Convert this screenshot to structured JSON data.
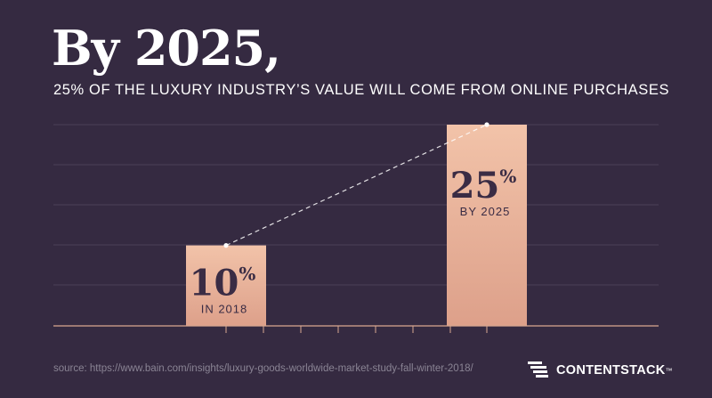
{
  "title": "By 2025,",
  "subtitle": "25% OF THE LUXURY INDUSTRY’S VALUE WILL COME FROM ONLINE PURCHASES",
  "source": "source: https://www.bain.com/insights/luxury-goods-worldwide-market-study-fall-winter-2018/",
  "brand": {
    "name": "CONTENTSTACK",
    "tm": "™"
  },
  "colors": {
    "background": "#352a41",
    "bar_top": "#f2c3a9",
    "bar_bottom": "#dda08a",
    "grid": "#4a4057",
    "text_dark": "#3a2c44"
  },
  "chart_data": {
    "type": "bar",
    "categories": [
      "2018",
      "2025"
    ],
    "values": [
      10,
      25
    ],
    "ylim": [
      0,
      25
    ],
    "grid": true,
    "bar_labels": [
      {
        "value": "10",
        "unit": "%",
        "caption": "IN 2018"
      },
      {
        "value": "25",
        "unit": "%",
        "caption": "BY 2025"
      }
    ],
    "trend_line": true
  }
}
